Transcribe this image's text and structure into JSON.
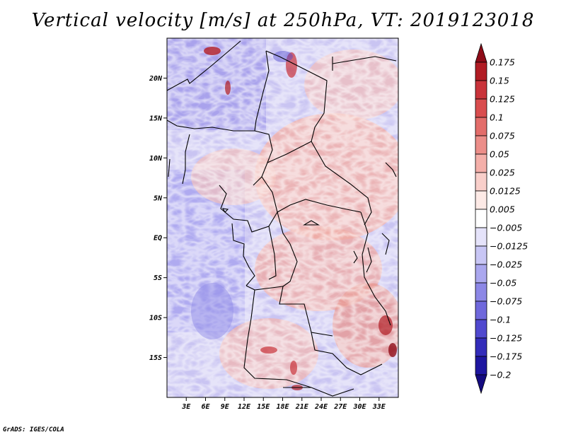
{
  "title": "Vertical velocity [m/s] at 250hPa, VT: 2019123018",
  "credit": "GrADS: IGES/COLA",
  "map": {
    "lat_range": [
      -20,
      25
    ],
    "lon_range": [
      0,
      36
    ],
    "y_ticks": [
      {
        "value": 20,
        "label": "20N"
      },
      {
        "value": 15,
        "label": "15N"
      },
      {
        "value": 10,
        "label": "10N"
      },
      {
        "value": 5,
        "label": "5N"
      },
      {
        "value": 0,
        "label": "EQ"
      },
      {
        "value": -5,
        "label": "5S"
      },
      {
        "value": -10,
        "label": "10S"
      },
      {
        "value": -15,
        "label": "15S"
      }
    ],
    "x_ticks": [
      {
        "value": 3,
        "label": "3E"
      },
      {
        "value": 6,
        "label": "6E"
      },
      {
        "value": 9,
        "label": "9E"
      },
      {
        "value": 12,
        "label": "12E"
      },
      {
        "value": 15,
        "label": "15E"
      },
      {
        "value": 18,
        "label": "18E"
      },
      {
        "value": 21,
        "label": "21E"
      },
      {
        "value": 24,
        "label": "24E"
      },
      {
        "value": 27,
        "label": "27E"
      },
      {
        "value": 30,
        "label": "30E"
      },
      {
        "value": 33,
        "label": "33E"
      }
    ]
  },
  "colorbar": {
    "levels": [
      "0.175",
      "0.15",
      "0.125",
      "0.1",
      "0.075",
      "0.05",
      "0.025",
      "0.0125",
      "0.005",
      "−0.005",
      "−0.0125",
      "−0.025",
      "−0.05",
      "−0.075",
      "−0.1",
      "−0.125",
      "−0.175",
      "−0.2"
    ],
    "colors": [
      "#8e0c18",
      "#b11c24",
      "#c9333a",
      "#d94d4e",
      "#e36d6a",
      "#ec8e89",
      "#f4afa9",
      "#f9cfca",
      "#fdeae6",
      "#ffffff",
      "#e5e3fa",
      "#c8c6f5",
      "#aaa7ee",
      "#8c87e6",
      "#6f68dc",
      "#5049cf",
      "#332cba",
      "#1e16a0",
      "#140b80"
    ]
  }
}
